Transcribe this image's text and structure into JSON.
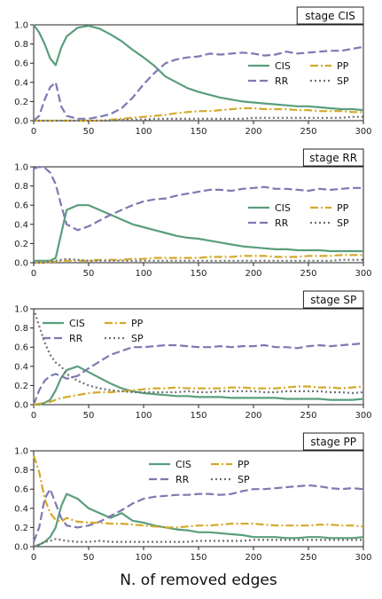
{
  "xlabel": "N. of removed edges",
  "colors": {
    "CIS": "#5a9e7c",
    "RR": "#7d79b3",
    "PP": "#d4aa2c",
    "SP": "#707070"
  },
  "chart_data": [
    {
      "type": "line",
      "title": "stage CIS",
      "xlim": [
        0,
        300
      ],
      "ylim": [
        0,
        1.0
      ],
      "xticks": [
        "0",
        "50",
        "100",
        "150",
        "200",
        "250",
        "300"
      ],
      "yticks": [
        "0.0",
        "0.2",
        "0.4",
        "0.6",
        "0.8",
        "1.0"
      ],
      "legend": "right",
      "x": [
        0,
        5,
        10,
        15,
        20,
        25,
        30,
        40,
        50,
        60,
        70,
        80,
        90,
        100,
        110,
        120,
        130,
        140,
        150,
        160,
        170,
        180,
        190,
        200,
        210,
        220,
        230,
        240,
        250,
        260,
        270,
        280,
        290,
        300
      ],
      "series": [
        {
          "name": "CIS",
          "values": [
            1.0,
            0.92,
            0.8,
            0.65,
            0.58,
            0.76,
            0.88,
            0.97,
            0.99,
            0.96,
            0.9,
            0.83,
            0.74,
            0.66,
            0.57,
            0.46,
            0.4,
            0.34,
            0.3,
            0.27,
            0.24,
            0.22,
            0.2,
            0.19,
            0.18,
            0.17,
            0.16,
            0.15,
            0.15,
            0.14,
            0.13,
            0.12,
            0.12,
            0.11
          ]
        },
        {
          "name": "RR",
          "values": [
            0.0,
            0.05,
            0.22,
            0.35,
            0.4,
            0.15,
            0.05,
            0.02,
            0.02,
            0.04,
            0.07,
            0.13,
            0.24,
            0.38,
            0.5,
            0.6,
            0.64,
            0.66,
            0.67,
            0.7,
            0.69,
            0.7,
            0.71,
            0.7,
            0.68,
            0.69,
            0.72,
            0.7,
            0.71,
            0.72,
            0.73,
            0.73,
            0.75,
            0.77
          ]
        },
        {
          "name": "PP",
          "values": [
            0.0,
            0.0,
            0.0,
            0.0,
            0.0,
            0.0,
            0.0,
            0.0,
            0.0,
            0.0,
            0.01,
            0.02,
            0.03,
            0.04,
            0.05,
            0.06,
            0.08,
            0.09,
            0.1,
            0.1,
            0.11,
            0.12,
            0.13,
            0.13,
            0.12,
            0.12,
            0.12,
            0.11,
            0.11,
            0.1,
            0.1,
            0.1,
            0.09,
            0.09
          ]
        },
        {
          "name": "SP",
          "values": [
            0.0,
            0.0,
            0.0,
            0.0,
            0.0,
            0.0,
            0.0,
            0.0,
            0.0,
            0.0,
            0.0,
            0.01,
            0.01,
            0.01,
            0.02,
            0.02,
            0.02,
            0.02,
            0.02,
            0.02,
            0.02,
            0.02,
            0.02,
            0.03,
            0.03,
            0.03,
            0.03,
            0.03,
            0.03,
            0.03,
            0.03,
            0.03,
            0.04,
            0.04
          ]
        }
      ]
    },
    {
      "type": "line",
      "title": "stage RR",
      "xlim": [
        0,
        300
      ],
      "ylim": [
        0,
        1.0
      ],
      "xticks": [
        "0",
        "50",
        "100",
        "150",
        "200",
        "250",
        "300"
      ],
      "yticks": [
        "0.0",
        "0.2",
        "0.4",
        "0.6",
        "0.8",
        "1.0"
      ],
      "legend": "right",
      "x": [
        0,
        5,
        10,
        15,
        20,
        25,
        30,
        40,
        50,
        60,
        70,
        80,
        90,
        100,
        110,
        120,
        130,
        140,
        150,
        160,
        170,
        180,
        190,
        200,
        210,
        220,
        230,
        240,
        250,
        260,
        270,
        280,
        290,
        300
      ],
      "series": [
        {
          "name": "CIS",
          "values": [
            0.02,
            0.02,
            0.02,
            0.02,
            0.05,
            0.3,
            0.55,
            0.6,
            0.6,
            0.55,
            0.5,
            0.45,
            0.4,
            0.37,
            0.34,
            0.31,
            0.28,
            0.26,
            0.25,
            0.23,
            0.21,
            0.19,
            0.17,
            0.16,
            0.15,
            0.14,
            0.14,
            0.13,
            0.13,
            0.13,
            0.12,
            0.12,
            0.12,
            0.12
          ]
        },
        {
          "name": "RR",
          "values": [
            0.98,
            1.0,
            0.99,
            0.94,
            0.82,
            0.6,
            0.4,
            0.34,
            0.38,
            0.44,
            0.5,
            0.55,
            0.6,
            0.64,
            0.66,
            0.67,
            0.7,
            0.72,
            0.74,
            0.76,
            0.76,
            0.75,
            0.77,
            0.78,
            0.79,
            0.77,
            0.77,
            0.76,
            0.75,
            0.77,
            0.76,
            0.77,
            0.78,
            0.78
          ]
        },
        {
          "name": "PP",
          "values": [
            0.0,
            0.0,
            0.0,
            0.01,
            0.01,
            0.02,
            0.02,
            0.02,
            0.02,
            0.03,
            0.03,
            0.03,
            0.04,
            0.04,
            0.05,
            0.05,
            0.05,
            0.05,
            0.05,
            0.06,
            0.06,
            0.06,
            0.07,
            0.07,
            0.07,
            0.06,
            0.06,
            0.06,
            0.07,
            0.07,
            0.07,
            0.08,
            0.08,
            0.08
          ]
        },
        {
          "name": "SP",
          "values": [
            0.0,
            0.0,
            0.0,
            0.01,
            0.02,
            0.03,
            0.04,
            0.03,
            0.02,
            0.02,
            0.02,
            0.02,
            0.02,
            0.02,
            0.02,
            0.02,
            0.02,
            0.02,
            0.02,
            0.02,
            0.02,
            0.02,
            0.02,
            0.02,
            0.02,
            0.02,
            0.02,
            0.02,
            0.02,
            0.02,
            0.02,
            0.03,
            0.03,
            0.03
          ]
        }
      ]
    },
    {
      "type": "line",
      "title": "stage SP",
      "xlim": [
        0,
        300
      ],
      "ylim": [
        0,
        1.0
      ],
      "xticks": [
        "0",
        "50",
        "100",
        "150",
        "200",
        "250",
        "300"
      ],
      "yticks": [
        "0.0",
        "0.2",
        "0.4",
        "0.6",
        "0.8",
        "1.0"
      ],
      "legend": "top-left",
      "x": [
        0,
        5,
        10,
        15,
        20,
        25,
        30,
        40,
        50,
        60,
        70,
        80,
        90,
        100,
        110,
        120,
        130,
        140,
        150,
        160,
        170,
        180,
        190,
        200,
        210,
        220,
        230,
        240,
        250,
        260,
        270,
        280,
        290,
        300
      ],
      "series": [
        {
          "name": "CIS",
          "values": [
            0.0,
            0.0,
            0.02,
            0.05,
            0.15,
            0.28,
            0.36,
            0.4,
            0.34,
            0.28,
            0.22,
            0.17,
            0.14,
            0.12,
            0.11,
            0.1,
            0.09,
            0.09,
            0.08,
            0.08,
            0.08,
            0.07,
            0.07,
            0.07,
            0.07,
            0.07,
            0.06,
            0.06,
            0.06,
            0.06,
            0.05,
            0.05,
            0.05,
            0.06
          ]
        },
        {
          "name": "RR",
          "values": [
            0.0,
            0.15,
            0.25,
            0.3,
            0.32,
            0.3,
            0.27,
            0.3,
            0.38,
            0.45,
            0.52,
            0.56,
            0.6,
            0.6,
            0.61,
            0.62,
            0.62,
            0.61,
            0.6,
            0.6,
            0.61,
            0.6,
            0.61,
            0.61,
            0.62,
            0.6,
            0.6,
            0.59,
            0.61,
            0.62,
            0.61,
            0.62,
            0.63,
            0.64
          ]
        },
        {
          "name": "PP",
          "values": [
            0.0,
            0.01,
            0.02,
            0.03,
            0.05,
            0.07,
            0.08,
            0.1,
            0.12,
            0.13,
            0.13,
            0.14,
            0.15,
            0.16,
            0.17,
            0.17,
            0.18,
            0.17,
            0.17,
            0.17,
            0.17,
            0.18,
            0.18,
            0.17,
            0.17,
            0.17,
            0.18,
            0.19,
            0.19,
            0.18,
            0.18,
            0.17,
            0.18,
            0.19
          ]
        },
        {
          "name": "SP",
          "values": [
            1.0,
            0.82,
            0.65,
            0.52,
            0.44,
            0.4,
            0.32,
            0.25,
            0.2,
            0.17,
            0.15,
            0.14,
            0.13,
            0.13,
            0.13,
            0.13,
            0.13,
            0.14,
            0.13,
            0.13,
            0.14,
            0.14,
            0.14,
            0.14,
            0.13,
            0.13,
            0.14,
            0.14,
            0.14,
            0.14,
            0.13,
            0.13,
            0.12,
            0.13
          ]
        }
      ]
    },
    {
      "type": "line",
      "title": "stage PP",
      "xlim": [
        0,
        300
      ],
      "ylim": [
        0,
        1.0
      ],
      "xticks": [
        "0",
        "50",
        "100",
        "150",
        "200",
        "250",
        "300"
      ],
      "yticks": [
        "0.0",
        "0.2",
        "0.4",
        "0.6",
        "0.8",
        "1.0"
      ],
      "legend": "top-center",
      "x": [
        0,
        5,
        10,
        15,
        20,
        25,
        30,
        40,
        50,
        60,
        70,
        80,
        90,
        100,
        110,
        120,
        130,
        140,
        150,
        160,
        170,
        180,
        190,
        200,
        210,
        220,
        230,
        240,
        250,
        260,
        270,
        280,
        290,
        300
      ],
      "series": [
        {
          "name": "CIS",
          "values": [
            0.0,
            0.02,
            0.05,
            0.1,
            0.2,
            0.42,
            0.55,
            0.5,
            0.4,
            0.35,
            0.3,
            0.35,
            0.27,
            0.25,
            0.22,
            0.2,
            0.18,
            0.17,
            0.15,
            0.15,
            0.14,
            0.13,
            0.12,
            0.1,
            0.1,
            0.1,
            0.09,
            0.09,
            0.1,
            0.1,
            0.09,
            0.09,
            0.09,
            0.1
          ]
        },
        {
          "name": "RR",
          "values": [
            0.05,
            0.2,
            0.5,
            0.6,
            0.45,
            0.3,
            0.22,
            0.2,
            0.22,
            0.26,
            0.32,
            0.38,
            0.45,
            0.5,
            0.52,
            0.53,
            0.54,
            0.54,
            0.55,
            0.55,
            0.54,
            0.55,
            0.58,
            0.6,
            0.6,
            0.61,
            0.62,
            0.63,
            0.64,
            0.63,
            0.61,
            0.6,
            0.61,
            0.6
          ]
        },
        {
          "name": "PP",
          "values": [
            0.95,
            0.78,
            0.5,
            0.35,
            0.28,
            0.26,
            0.3,
            0.26,
            0.25,
            0.25,
            0.24,
            0.24,
            0.23,
            0.22,
            0.21,
            0.2,
            0.2,
            0.21,
            0.22,
            0.22,
            0.23,
            0.24,
            0.24,
            0.24,
            0.23,
            0.22,
            0.22,
            0.22,
            0.22,
            0.23,
            0.23,
            0.22,
            0.22,
            0.21
          ]
        },
        {
          "name": "SP",
          "values": [
            0.0,
            0.02,
            0.05,
            0.06,
            0.08,
            0.07,
            0.06,
            0.05,
            0.05,
            0.06,
            0.05,
            0.05,
            0.05,
            0.05,
            0.05,
            0.05,
            0.05,
            0.05,
            0.06,
            0.06,
            0.06,
            0.06,
            0.06,
            0.07,
            0.07,
            0.07,
            0.07,
            0.07,
            0.07,
            0.07,
            0.07,
            0.07,
            0.07,
            0.07
          ]
        }
      ]
    }
  ]
}
